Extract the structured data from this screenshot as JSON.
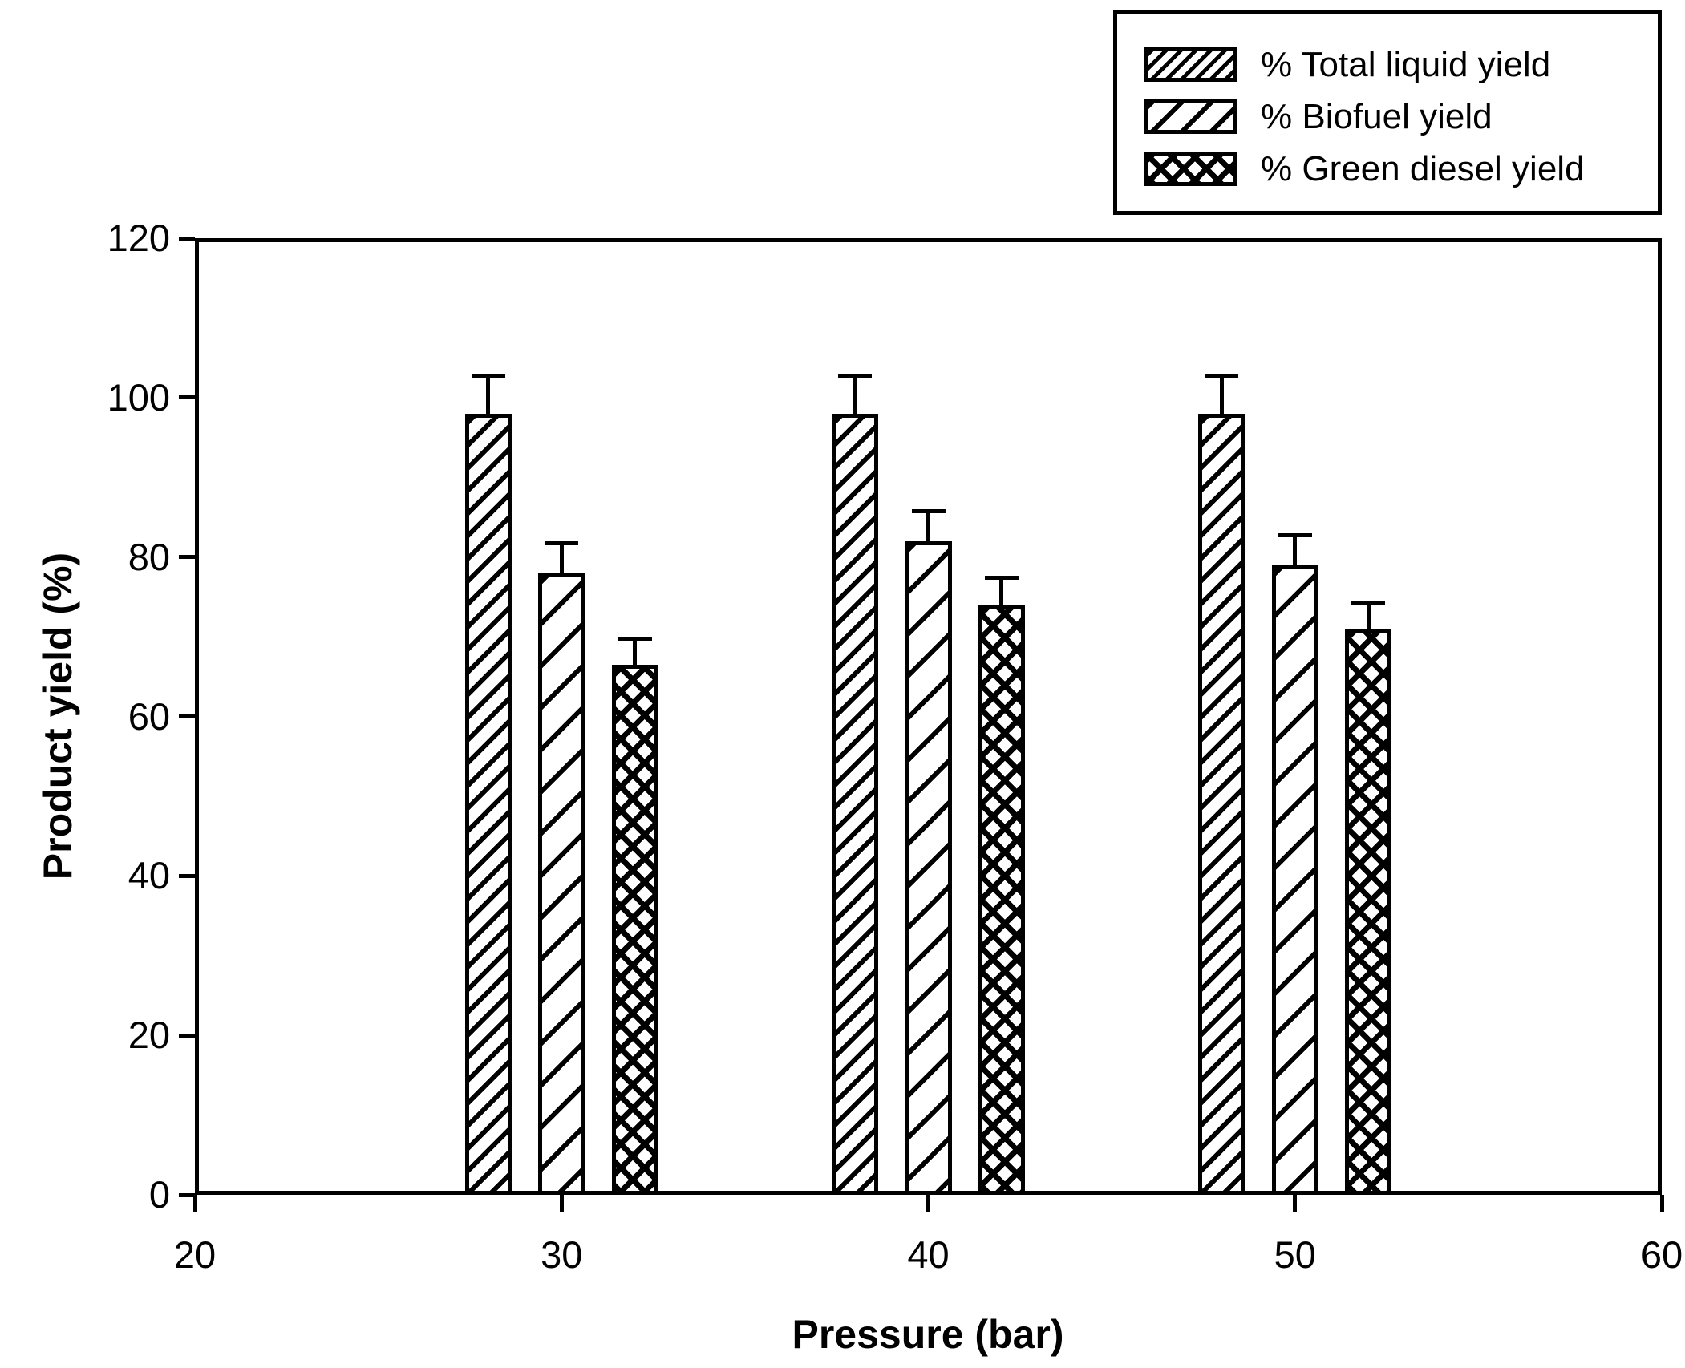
{
  "chart_data": {
    "type": "bar",
    "title": "",
    "xlabel": "Pressure (bar)",
    "ylabel": "Product yield (%)",
    "xlim": [
      20,
      60
    ],
    "ylim": [
      0,
      120
    ],
    "x_ticks": [
      20,
      30,
      40,
      50,
      60
    ],
    "y_ticks": [
      0,
      20,
      40,
      60,
      80,
      100,
      120
    ],
    "categories": [
      30,
      40,
      50
    ],
    "bar_offsets": [
      -2,
      0,
      2
    ],
    "bar_width_units": 1.27,
    "series": [
      {
        "name": "% Total liquid yield",
        "hatch": "dense-diagonal",
        "values": [
          98,
          98,
          98
        ],
        "errors": [
          5,
          5,
          5
        ]
      },
      {
        "name": "% Biofuel yield",
        "hatch": "sparse-diagonal",
        "values": [
          78,
          82,
          79
        ],
        "errors": [
          4,
          4,
          4
        ]
      },
      {
        "name": "% Green diesel yield",
        "hatch": "crosshatch",
        "values": [
          66.5,
          74,
          71
        ],
        "errors": [
          3.5,
          3.7,
          3.5
        ]
      }
    ],
    "error_bars": "upper-only",
    "legend_position": "top-right",
    "grid": false,
    "colors": {
      "foreground": "#000000",
      "background": "#ffffff"
    }
  }
}
